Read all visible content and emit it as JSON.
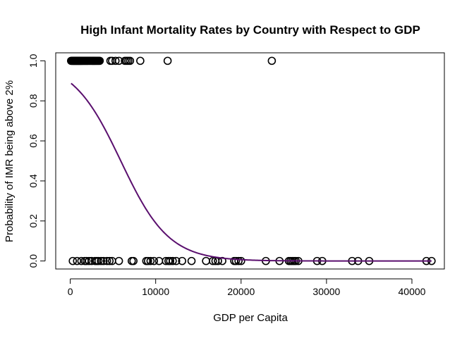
{
  "chart_data": {
    "type": "scatter",
    "title": "High Infant Mortality Rates by Country with Respect to GDP",
    "xlabel": "GDP per Capita",
    "ylabel": "Probability of IMR being above 2%",
    "xlim": [
      -1700,
      43800
    ],
    "ylim": [
      -0.04,
      1.04
    ],
    "x_ticks": [
      0,
      10000,
      20000,
      30000,
      40000
    ],
    "x_tick_labels": [
      "0",
      "10000",
      "20000",
      "30000",
      "40000"
    ],
    "y_ticks": [
      0.0,
      0.2,
      0.4,
      0.6,
      0.8,
      1.0
    ],
    "y_tick_labels": [
      "0.0",
      "0.2",
      "0.4",
      "0.6",
      "0.8",
      "1.0"
    ],
    "grid": false,
    "legend": "none",
    "colors": {
      "points": "#000000",
      "curve": "#5a0f6e",
      "axes": "#000000"
    },
    "points_y1": [
      100,
      180,
      250,
      320,
      380,
      440,
      500,
      560,
      620,
      680,
      740,
      800,
      860,
      920,
      980,
      1040,
      1100,
      1160,
      1220,
      1280,
      1350,
      1420,
      1500,
      1580,
      1660,
      1740,
      1820,
      1900,
      1980,
      2060,
      2140,
      2220,
      2300,
      2380,
      2460,
      2540,
      2620,
      2700,
      2780,
      2860,
      2950,
      3050,
      3150,
      3250,
      3350,
      3450,
      4700,
      4900,
      5300,
      5700,
      6400,
      6600,
      6800,
      7000,
      8200,
      11400,
      23600
    ],
    "points_y0": [
      300,
      800,
      1300,
      1700,
      1900,
      2200,
      2500,
      2900,
      3100,
      3300,
      3600,
      3900,
      4300,
      4600,
      4900,
      5700,
      7200,
      7400,
      8900,
      9100,
      9400,
      9800,
      10400,
      11200,
      11500,
      11700,
      12000,
      12400,
      13100,
      14200,
      15900,
      16700,
      17000,
      17300,
      17800,
      19200,
      19400,
      19700,
      20000,
      22900,
      24500,
      25600,
      25800,
      26000,
      26200,
      26400,
      26700,
      28900,
      29500,
      33000,
      33700,
      35000,
      41700,
      42300
    ],
    "curve": {
      "model": "logistic",
      "intercept": 2.1,
      "slope_per_unit": -0.000355,
      "x_range": [
        100,
        42300
      ]
    }
  }
}
